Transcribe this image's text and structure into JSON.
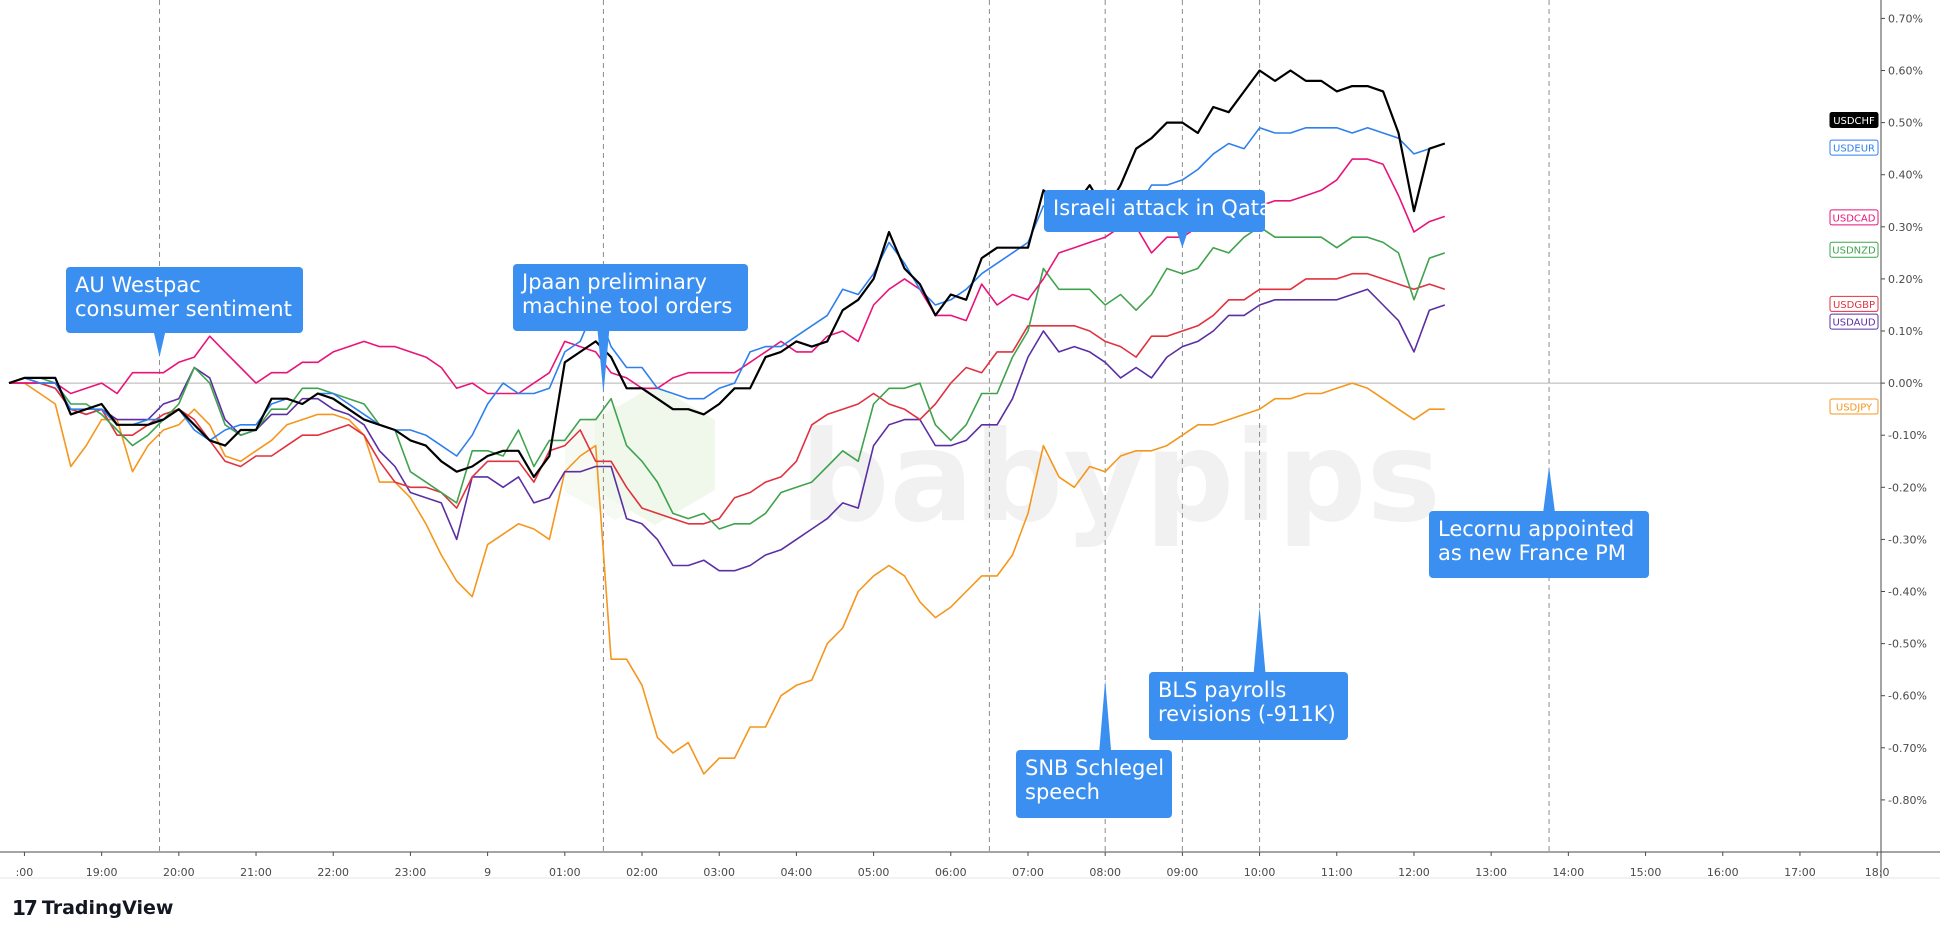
{
  "chart_data": {
    "type": "line",
    "title": "",
    "xlabel": "",
    "ylabel": "",
    "ylim": [
      -0.9,
      0.72
    ],
    "y_ticks": [
      0.7,
      0.6,
      0.5,
      0.4,
      0.3,
      0.2,
      0.1,
      0.0,
      -0.1,
      -0.2,
      -0.3,
      -0.4,
      -0.5,
      -0.6,
      -0.7,
      -0.8
    ],
    "y_tick_labels": [
      "0.70%",
      "0.60%",
      "0.50%",
      "0.40%",
      "0.30%",
      "0.20%",
      "0.10%",
      "0.00%",
      "-0.10%",
      "-0.20%",
      "-0.30%",
      "-0.40%",
      "-0.50%",
      "-0.60%",
      "-0.70%",
      "-0.80%"
    ],
    "x_range": [
      -3.2,
      21.05
    ],
    "x_ticks": [
      {
        "x": -3,
        "label": ":00"
      },
      {
        "x": -2,
        "label": "19:00"
      },
      {
        "x": -1,
        "label": "20:00"
      },
      {
        "x": 0,
        "label": "21:00"
      },
      {
        "x": 1,
        "label": "22:00"
      },
      {
        "x": 2,
        "label": "23:00"
      },
      {
        "x": 3,
        "label": "9"
      },
      {
        "x": 4,
        "label": "01:00"
      },
      {
        "x": 5,
        "label": "02:00"
      },
      {
        "x": 6,
        "label": "03:00"
      },
      {
        "x": 7,
        "label": "04:00"
      },
      {
        "x": 8,
        "label": "05:00"
      },
      {
        "x": 9,
        "label": "06:00"
      },
      {
        "x": 10,
        "label": "07:00"
      },
      {
        "x": 11,
        "label": "08:00"
      },
      {
        "x": 12,
        "label": "09:00"
      },
      {
        "x": 13,
        "label": "10:00"
      },
      {
        "x": 14,
        "label": "11:00"
      },
      {
        "x": 15,
        "label": "12:00"
      },
      {
        "x": 16,
        "label": "13:00"
      },
      {
        "x": 17,
        "label": "14:00"
      },
      {
        "x": 18,
        "label": "15:00"
      },
      {
        "x": 19,
        "label": "16:00"
      },
      {
        "x": 20,
        "label": "17:00"
      },
      {
        "x": 21,
        "label": "18:0"
      }
    ],
    "event_lines_x": [
      -1.25,
      4.5,
      9.5,
      11.0,
      12.0,
      13.0,
      16.75
    ],
    "zero_line": true,
    "grid": false,
    "x_step": 0.2,
    "series": [
      {
        "name": "USDCHF",
        "color": "#000000",
        "values": [
          0.0,
          0.01,
          0.01,
          0.01,
          -0.06,
          -0.05,
          -0.04,
          -0.08,
          -0.08,
          -0.08,
          -0.07,
          -0.05,
          -0.08,
          -0.11,
          -0.12,
          -0.09,
          -0.09,
          -0.03,
          -0.03,
          -0.04,
          -0.02,
          -0.03,
          -0.05,
          -0.07,
          -0.08,
          -0.09,
          -0.11,
          -0.12,
          -0.15,
          -0.17,
          -0.16,
          -0.14,
          -0.13,
          -0.13,
          -0.18,
          -0.14,
          0.04,
          0.06,
          0.08,
          0.05,
          -0.01,
          -0.01,
          -0.03,
          -0.05,
          -0.05,
          -0.06,
          -0.04,
          -0.01,
          -0.01,
          0.05,
          0.06,
          0.08,
          0.07,
          0.08,
          0.14,
          0.16,
          0.2,
          0.29,
          0.22,
          0.19,
          0.13,
          0.17,
          0.16,
          0.24,
          0.26,
          0.26,
          0.26,
          0.37,
          0.35,
          0.34,
          0.38,
          0.33,
          0.38,
          0.45,
          0.47,
          0.5,
          0.5,
          0.48,
          0.53,
          0.52,
          0.56,
          0.6,
          0.58,
          0.6,
          0.58,
          0.58,
          0.56,
          0.57,
          0.57,
          0.56,
          0.48,
          0.33,
          0.45,
          0.46
        ]
      },
      {
        "name": "USDEUR",
        "color": "#2f80ed",
        "values": [
          0.0,
          0.01,
          0.0,
          0.0,
          -0.05,
          -0.05,
          -0.05,
          -0.08,
          -0.08,
          -0.07,
          -0.07,
          -0.05,
          -0.09,
          -0.11,
          -0.09,
          -0.08,
          -0.08,
          -0.04,
          -0.03,
          -0.04,
          -0.02,
          -0.02,
          -0.04,
          -0.06,
          -0.08,
          -0.09,
          -0.09,
          -0.1,
          -0.12,
          -0.14,
          -0.1,
          -0.04,
          0.0,
          -0.02,
          -0.02,
          -0.01,
          0.06,
          0.08,
          0.15,
          0.07,
          0.03,
          0.03,
          -0.01,
          -0.02,
          -0.03,
          -0.03,
          -0.01,
          0.0,
          0.06,
          0.07,
          0.07,
          0.09,
          0.11,
          0.13,
          0.18,
          0.17,
          0.21,
          0.27,
          0.23,
          0.18,
          0.15,
          0.16,
          0.18,
          0.21,
          0.23,
          0.25,
          0.27,
          0.34,
          0.33,
          0.33,
          0.35,
          0.32,
          0.33,
          0.33,
          0.38,
          0.38,
          0.39,
          0.41,
          0.44,
          0.46,
          0.45,
          0.49,
          0.48,
          0.48,
          0.49,
          0.49,
          0.49,
          0.48,
          0.49,
          0.48,
          0.47,
          0.44,
          0.45,
          0.46
        ]
      },
      {
        "name": "USDCAD",
        "color": "#e8147a",
        "values": [
          0.0,
          0.0,
          0.0,
          0.0,
          -0.02,
          -0.01,
          0.0,
          -0.02,
          0.02,
          0.02,
          0.02,
          0.04,
          0.05,
          0.09,
          0.06,
          0.03,
          0.0,
          0.02,
          0.02,
          0.04,
          0.04,
          0.06,
          0.07,
          0.08,
          0.07,
          0.07,
          0.06,
          0.05,
          0.03,
          -0.01,
          0.0,
          -0.02,
          -0.02,
          -0.02,
          0.0,
          0.02,
          0.08,
          0.07,
          0.06,
          0.02,
          0.01,
          -0.01,
          -0.01,
          0.01,
          0.02,
          0.02,
          0.02,
          0.02,
          0.04,
          0.06,
          0.08,
          0.06,
          0.06,
          0.09,
          0.1,
          0.08,
          0.15,
          0.18,
          0.2,
          0.18,
          0.13,
          0.13,
          0.12,
          0.19,
          0.15,
          0.17,
          0.16,
          0.2,
          0.25,
          0.26,
          0.27,
          0.28,
          0.3,
          0.3,
          0.25,
          0.28,
          0.28,
          0.3,
          0.31,
          0.33,
          0.34,
          0.34,
          0.35,
          0.35,
          0.36,
          0.37,
          0.39,
          0.43,
          0.43,
          0.42,
          0.36,
          0.29,
          0.31,
          0.32
        ]
      },
      {
        "name": "USDNZD",
        "color": "#3fa34d",
        "values": [
          0.0,
          0.01,
          0.01,
          0.0,
          -0.04,
          -0.04,
          -0.06,
          -0.09,
          -0.12,
          -0.1,
          -0.07,
          -0.04,
          0.03,
          0.0,
          -0.08,
          -0.1,
          -0.09,
          -0.05,
          -0.05,
          -0.01,
          -0.01,
          -0.02,
          -0.03,
          -0.04,
          -0.08,
          -0.09,
          -0.17,
          -0.19,
          -0.21,
          -0.23,
          -0.13,
          -0.13,
          -0.14,
          -0.09,
          -0.16,
          -0.11,
          -0.11,
          -0.07,
          -0.07,
          -0.03,
          -0.12,
          -0.15,
          -0.19,
          -0.25,
          -0.26,
          -0.25,
          -0.28,
          -0.27,
          -0.27,
          -0.25,
          -0.21,
          -0.2,
          -0.19,
          -0.16,
          -0.13,
          -0.15,
          -0.04,
          -0.01,
          -0.01,
          0.0,
          -0.08,
          -0.11,
          -0.08,
          -0.02,
          -0.02,
          0.05,
          0.1,
          0.22,
          0.18,
          0.18,
          0.18,
          0.15,
          0.17,
          0.14,
          0.17,
          0.22,
          0.21,
          0.22,
          0.26,
          0.25,
          0.28,
          0.3,
          0.28,
          0.28,
          0.28,
          0.28,
          0.26,
          0.28,
          0.28,
          0.27,
          0.25,
          0.16,
          0.24,
          0.25
        ]
      },
      {
        "name": "USDGBP",
        "color": "#e0323f",
        "values": [
          0.0,
          0.0,
          0.0,
          -0.01,
          -0.05,
          -0.06,
          -0.05,
          -0.1,
          -0.1,
          -0.08,
          -0.06,
          -0.05,
          -0.07,
          -0.11,
          -0.15,
          -0.16,
          -0.14,
          -0.14,
          -0.12,
          -0.1,
          -0.1,
          -0.09,
          -0.08,
          -0.1,
          -0.15,
          -0.19,
          -0.2,
          -0.2,
          -0.21,
          -0.24,
          -0.18,
          -0.15,
          -0.15,
          -0.15,
          -0.19,
          -0.13,
          -0.12,
          -0.09,
          -0.15,
          -0.15,
          -0.2,
          -0.24,
          -0.25,
          -0.26,
          -0.27,
          -0.27,
          -0.26,
          -0.22,
          -0.21,
          -0.19,
          -0.18,
          -0.15,
          -0.08,
          -0.06,
          -0.05,
          -0.04,
          -0.02,
          -0.04,
          -0.05,
          -0.07,
          -0.04,
          0.0,
          0.03,
          0.02,
          0.06,
          0.06,
          0.11,
          0.11,
          0.11,
          0.11,
          0.1,
          0.08,
          0.07,
          0.05,
          0.09,
          0.09,
          0.1,
          0.11,
          0.13,
          0.16,
          0.16,
          0.18,
          0.18,
          0.18,
          0.2,
          0.2,
          0.2,
          0.21,
          0.21,
          0.2,
          0.19,
          0.18,
          0.19,
          0.18
        ]
      },
      {
        "name": "USDAUD",
        "color": "#5b2fa3",
        "values": [
          0.0,
          0.01,
          0.0,
          -0.01,
          -0.05,
          -0.06,
          -0.05,
          -0.07,
          -0.07,
          -0.07,
          -0.04,
          -0.03,
          0.03,
          0.01,
          -0.07,
          -0.1,
          -0.09,
          -0.06,
          -0.06,
          -0.03,
          -0.03,
          -0.05,
          -0.06,
          -0.08,
          -0.13,
          -0.16,
          -0.21,
          -0.22,
          -0.23,
          -0.3,
          -0.18,
          -0.18,
          -0.2,
          -0.18,
          -0.23,
          -0.22,
          -0.17,
          -0.17,
          -0.16,
          -0.16,
          -0.26,
          -0.27,
          -0.3,
          -0.35,
          -0.35,
          -0.34,
          -0.36,
          -0.36,
          -0.35,
          -0.33,
          -0.32,
          -0.3,
          -0.28,
          -0.26,
          -0.23,
          -0.24,
          -0.12,
          -0.08,
          -0.07,
          -0.07,
          -0.12,
          -0.12,
          -0.11,
          -0.08,
          -0.08,
          -0.03,
          0.05,
          0.1,
          0.06,
          0.07,
          0.06,
          0.04,
          0.01,
          0.03,
          0.01,
          0.05,
          0.07,
          0.08,
          0.1,
          0.13,
          0.13,
          0.15,
          0.16,
          0.16,
          0.16,
          0.16,
          0.16,
          0.17,
          0.18,
          0.15,
          0.12,
          0.06,
          0.14,
          0.15
        ]
      },
      {
        "name": "USDJPY",
        "color": "#f5961d",
        "values": [
          0.0,
          0.0,
          -0.02,
          -0.04,
          -0.16,
          -0.12,
          -0.07,
          -0.07,
          -0.17,
          -0.12,
          -0.09,
          -0.08,
          -0.05,
          -0.08,
          -0.14,
          -0.15,
          -0.13,
          -0.11,
          -0.08,
          -0.07,
          -0.06,
          -0.06,
          -0.07,
          -0.1,
          -0.19,
          -0.19,
          -0.22,
          -0.27,
          -0.33,
          -0.38,
          -0.41,
          -0.31,
          -0.29,
          -0.27,
          -0.28,
          -0.3,
          -0.17,
          -0.14,
          -0.12,
          -0.53,
          -0.53,
          -0.58,
          -0.68,
          -0.71,
          -0.69,
          -0.75,
          -0.72,
          -0.72,
          -0.66,
          -0.66,
          -0.6,
          -0.58,
          -0.57,
          -0.5,
          -0.47,
          -0.4,
          -0.37,
          -0.35,
          -0.37,
          -0.42,
          -0.45,
          -0.43,
          -0.4,
          -0.37,
          -0.37,
          -0.33,
          -0.25,
          -0.12,
          -0.18,
          -0.2,
          -0.16,
          -0.17,
          -0.14,
          -0.13,
          -0.13,
          -0.12,
          -0.1,
          -0.08,
          -0.08,
          -0.07,
          -0.06,
          -0.05,
          -0.03,
          -0.03,
          -0.02,
          -0.02,
          -0.01,
          0.0,
          -0.01,
          -0.03,
          -0.05,
          -0.07,
          -0.05,
          -0.05
        ]
      }
    ],
    "annotations": [
      {
        "lines": [
          "AU Westpac",
          "consumer sentiment"
        ],
        "x": -1.25,
        "y": 0.05,
        "pointer": "down"
      },
      {
        "lines": [
          "Jpaan preliminary",
          "machine tool orders"
        ],
        "x": 4.5,
        "y": -0.02,
        "pointer": "down"
      },
      {
        "lines": [
          "Israeli attack in Qatar"
        ],
        "x": 12.0,
        "y": 0.26,
        "pointer": "down"
      },
      {
        "lines": [
          "SNB Schlegel",
          "speech"
        ],
        "x": 11.0,
        "y": -0.57,
        "pointer": "up"
      },
      {
        "lines": [
          "BLS payrolls",
          "revisions (-911K)"
        ],
        "x": 13.0,
        "y": -0.43,
        "pointer": "up"
      },
      {
        "lines": [
          "Lecornu appointed",
          "as new France PM"
        ],
        "x": 16.75,
        "y": -0.16,
        "pointer": "up"
      }
    ]
  },
  "colors": {
    "callout_bg": "#3b8ff0",
    "axis": "#4a4a4a",
    "event_line": "#8c8c8c",
    "zero_line": "#b5b5b5",
    "watermark": "#8fc46a"
  },
  "watermark": {
    "text": "babypips"
  },
  "brand": {
    "logo": "17",
    "name": "TradingView"
  }
}
